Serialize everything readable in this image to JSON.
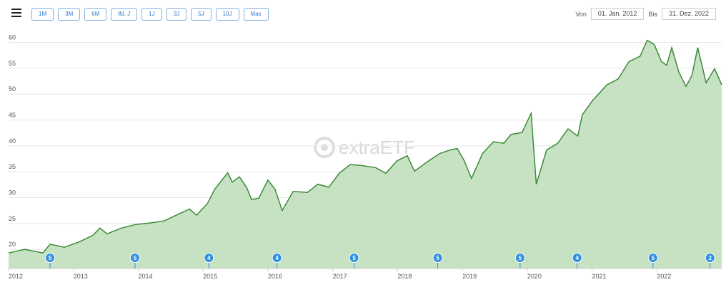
{
  "toolbar": {
    "buttons": [
      "1M",
      "3M",
      "6M",
      "lfd. J",
      "1J",
      "3J",
      "5J",
      "10J",
      "Max"
    ],
    "from_label": "Von",
    "from": "01. Jan. 2012",
    "to_label": "Bis",
    "to": "31. Dez. 2022"
  },
  "watermark": "extraETF",
  "chart_data": {
    "type": "area",
    "color": "#3b8a36",
    "fill": "#c6e2c2",
    "grid": true,
    "x": [
      2012.0,
      2012.25,
      2012.53,
      2012.64,
      2012.86,
      2013.08,
      2013.3,
      2013.41,
      2013.52,
      2013.74,
      2013.96,
      2014.18,
      2014.4,
      2014.62,
      2014.79,
      2014.9,
      2015.07,
      2015.18,
      2015.38,
      2015.45,
      2015.56,
      2015.67,
      2015.75,
      2015.86,
      2016.0,
      2016.11,
      2016.22,
      2016.39,
      2016.61,
      2016.77,
      2016.94,
      2017.1,
      2017.27,
      2017.44,
      2017.66,
      2017.82,
      2017.99,
      2018.15,
      2018.26,
      2018.48,
      2018.65,
      2018.81,
      2018.92,
      2019.03,
      2019.14,
      2019.31,
      2019.48,
      2019.64,
      2019.75,
      2019.92,
      2020.06,
      2020.14,
      2020.3,
      2020.47,
      2020.63,
      2020.78,
      2020.85,
      2021.01,
      2021.23,
      2021.4,
      2021.57,
      2021.74,
      2021.85,
      2021.96,
      2022.07,
      2022.15,
      2022.23,
      2022.34,
      2022.45,
      2022.54,
      2022.63,
      2022.76,
      2022.89,
      2023.0
    ],
    "values": [
      19.3,
      20.0,
      19.3,
      21.0,
      20.4,
      21.4,
      22.7,
      24.1,
      23.0,
      24.1,
      24.8,
      25.1,
      25.5,
      26.8,
      27.8,
      26.6,
      28.9,
      31.6,
      34.8,
      33.0,
      34.0,
      32.0,
      29.6,
      29.9,
      33.4,
      31.6,
      27.5,
      31.2,
      31.0,
      32.6,
      32.0,
      34.7,
      36.4,
      36.2,
      35.8,
      34.7,
      37.1,
      38.1,
      35.1,
      37.1,
      38.5,
      39.2,
      39.5,
      37.1,
      33.7,
      38.5,
      40.8,
      40.5,
      42.2,
      42.6,
      46.3,
      32.6,
      39.2,
      40.5,
      43.3,
      41.9,
      46.0,
      48.8,
      51.8,
      52.9,
      56.3,
      57.3,
      60.4,
      59.6,
      56.3,
      55.6,
      59.0,
      54.2,
      51.5,
      53.6,
      59.0,
      52.2,
      54.9,
      51.8
    ],
    "xlim": [
      2012,
      2023
    ],
    "ylim": [
      16.3,
      62
    ],
    "xticks": [
      2012,
      2013,
      2014,
      2015,
      2016,
      2017,
      2018,
      2019,
      2020,
      2021,
      2022
    ],
    "yticks": [
      20,
      25,
      30,
      35,
      40,
      45,
      50,
      55,
      60
    ],
    "events": {
      "x": [
        2012.64,
        2013.95,
        2015.09,
        2016.14,
        2017.33,
        2018.62,
        2019.89,
        2020.77,
        2021.94,
        2022.82
      ],
      "values": [
        5,
        5,
        4,
        4,
        5,
        5,
        5,
        4,
        5,
        2
      ]
    }
  }
}
